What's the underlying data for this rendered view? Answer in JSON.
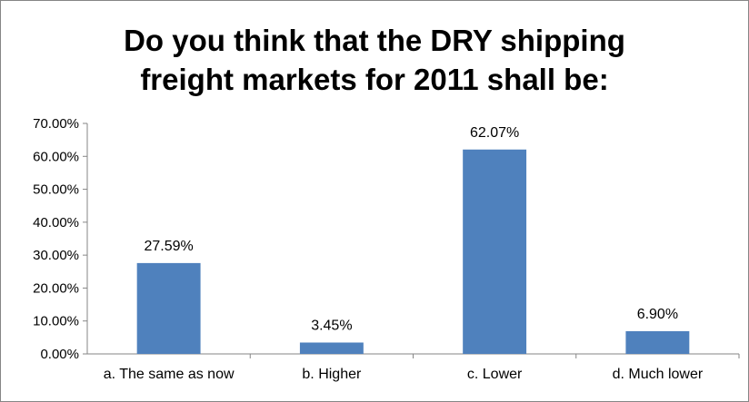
{
  "chart_data": {
    "type": "bar",
    "title_lines": [
      "Do you think that the DRY shipping",
      "freight markets for 2011 shall be:"
    ],
    "categories": [
      "a. The same as now",
      "b. Higher",
      "c. Lower",
      "d. Much lower"
    ],
    "values": [
      27.59,
      3.45,
      62.07,
      6.9
    ],
    "data_labels": [
      "27.59%",
      "3.45%",
      "62.07%",
      "6.90%"
    ],
    "ylim": [
      0,
      70
    ],
    "yticks": [
      0,
      10,
      20,
      30,
      40,
      50,
      60,
      70
    ],
    "ytick_labels": [
      "0.00%",
      "10.00%",
      "20.00%",
      "30.00%",
      "40.00%",
      "50.00%",
      "60.00%",
      "70.00%"
    ],
    "xlabel": "",
    "ylabel": "",
    "grid": false,
    "legend": "none",
    "bar_color": "#4F81BD"
  }
}
